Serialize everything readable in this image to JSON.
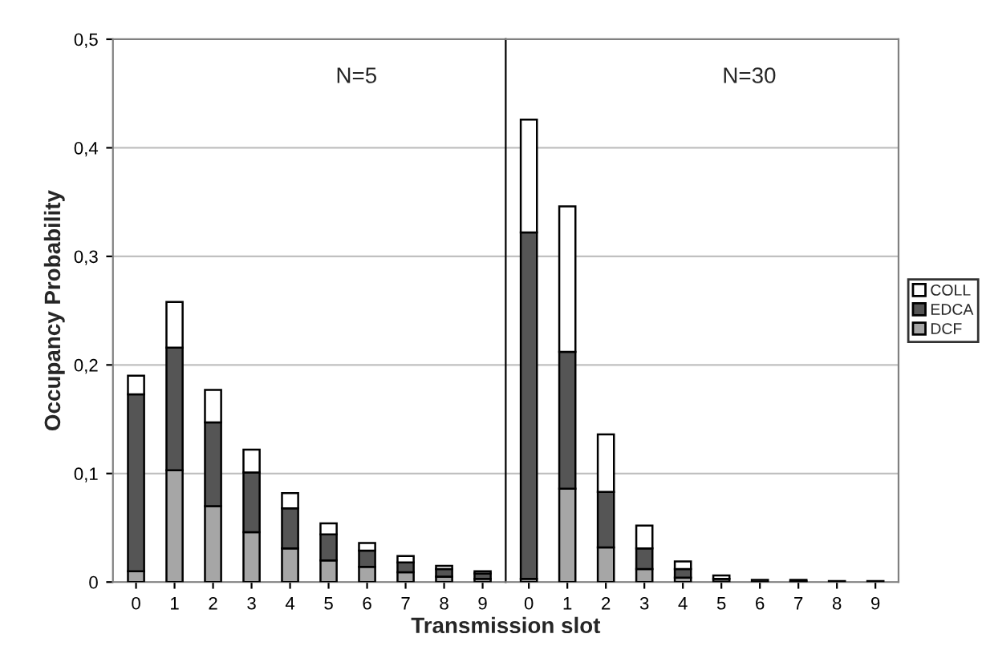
{
  "chart_data": [
    {
      "type": "bar",
      "stacked": true,
      "xlabel": "Transmission slot",
      "ylabel": "Occupancy Probability",
      "categories": [
        "0",
        "1",
        "2",
        "3",
        "4",
        "5",
        "6",
        "7",
        "8",
        "9"
      ],
      "series": [
        {
          "color": "#a6a6a6",
          "values": [
            0.01,
            0.103,
            0.07,
            0.046,
            0.031,
            0.02,
            0.014,
            0.009,
            0.005,
            0.003
          ]
        },
        {
          "color": "#555555",
          "values": [
            0.163,
            0.113,
            0.077,
            0.055,
            0.037,
            0.024,
            0.015,
            0.009,
            0.007,
            0.005
          ]
        },
        {
          "color": "#ffffff",
          "values": [
            0.017,
            0.042,
            0.03,
            0.021,
            0.014,
            0.01,
            0.007,
            0.006,
            0.003,
            0.002
          ]
        }
      ],
      "ylim": [
        0,
        0.5
      ],
      "yticks": [
        {
          "value": 0,
          "label": "0"
        },
        {
          "value": 0.1,
          "label": "0,1"
        },
        {
          "value": 0.2,
          "label": "0,2"
        },
        {
          "value": 0.3,
          "label": "0,3"
        },
        {
          "value": 0.4,
          "label": "0,4"
        },
        {
          "value": 0.5,
          "label": "0,5"
        }
      ],
      "grid": "y",
      "annotations": [
        "N=5"
      ]
    },
    {
      "type": "bar",
      "stacked": true,
      "categories": [
        "0",
        "1",
        "2",
        "3",
        "4",
        "5",
        "6",
        "7",
        "8",
        "9"
      ],
      "series": [
        {
          "name": "DCF",
          "color": "#a6a6a6",
          "values": [
            0.003,
            0.086,
            0.032,
            0.012,
            0.004,
            null,
            null,
            0.001,
            0.001,
            0.001
          ]
        },
        {
          "name": "EDCA",
          "color": "#555555",
          "values": [
            0.319,
            0.126,
            0.051,
            0.019,
            0.008,
            0.003,
            0.002,
            0.001,
            null,
            null
          ]
        },
        {
          "name": "COLL",
          "color": "#ffffff",
          "values": [
            0.104,
            0.134,
            0.053,
            0.021,
            0.007,
            0.003,
            null,
            null,
            null,
            null
          ]
        }
      ],
      "ylim": [
        0,
        0.5
      ],
      "tick_labels": "x",
      "grid": "y",
      "legend": "right",
      "annotations": [
        "N=30"
      ]
    }
  ]
}
